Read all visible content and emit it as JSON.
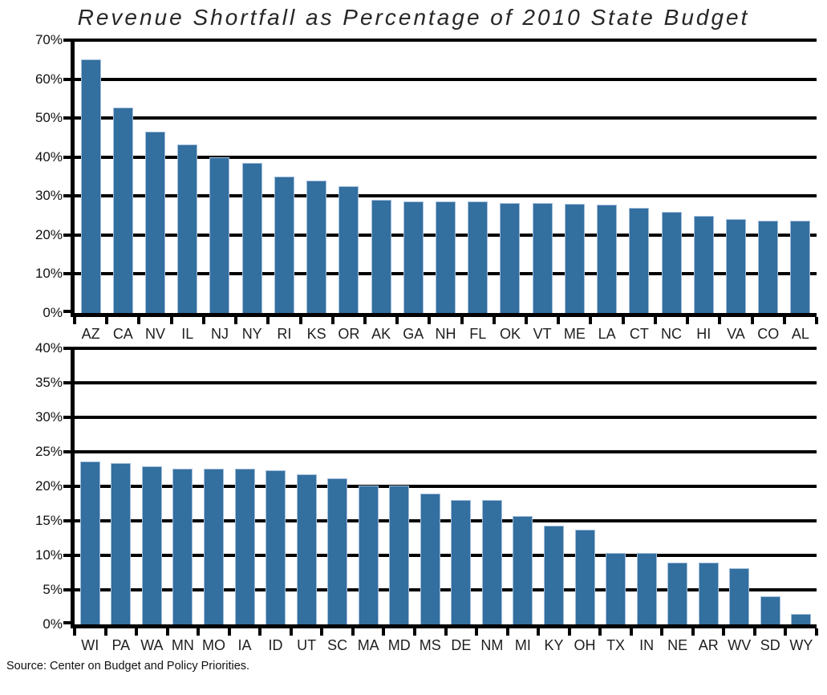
{
  "title": "Revenue Shortfall as Percentage of 2010 State Budget",
  "source_note": "Source: Center on Budget and Policy Priorities.",
  "colors": {
    "bar_fill": "#336f9f",
    "bar_edge": "#a3bedb",
    "grid_line": "#000000",
    "axis_line": "#000000",
    "title_text": "#262626",
    "label_text": "#1e1e1e"
  },
  "chart_data": [
    {
      "type": "bar",
      "panel": "top",
      "title": "Revenue Shortfall as Percentage of 2010 State Budget",
      "xlabel": "",
      "ylabel": "",
      "ylim": [
        0,
        70
      ],
      "ytick_step": 10,
      "yticklabels": [
        "70%",
        "60%",
        "50%",
        "40%",
        "30%",
        "20%",
        "10%",
        "0%"
      ],
      "grid": true,
      "legend_position": "none",
      "categories": [
        "AZ",
        "CA",
        "NV",
        "IL",
        "NJ",
        "NY",
        "RI",
        "KS",
        "OR",
        "AK",
        "GA",
        "NH",
        "FL",
        "OK",
        "VT",
        "ME",
        "LA",
        "CT",
        "NC",
        "HI",
        "VA",
        "CO",
        "AL"
      ],
      "values": [
        65.0,
        52.7,
        46.5,
        43.3,
        40.0,
        38.5,
        35.0,
        34.0,
        32.5,
        29.0,
        28.7,
        28.6,
        28.6,
        28.2,
        28.2,
        27.9,
        27.8,
        27.0,
        26.0,
        25.0,
        24.0,
        23.6,
        23.6
      ]
    },
    {
      "type": "bar",
      "panel": "bottom",
      "title": "Revenue Shortfall as Percentage of 2010 State Budget",
      "xlabel": "",
      "ylabel": "",
      "ylim": [
        0,
        40
      ],
      "ytick_step": 5,
      "yticklabels": [
        "40%",
        "35%",
        "30%",
        "25%",
        "20%",
        "15%",
        "10%",
        "5%",
        "0%"
      ],
      "grid": true,
      "legend_position": "none",
      "categories": [
        "WI",
        "PA",
        "WA",
        "MN",
        "MO",
        "IA",
        "ID",
        "UT",
        "SC",
        "MA",
        "MD",
        "MS",
        "DE",
        "NM",
        "MI",
        "KY",
        "OH",
        "TX",
        "IN",
        "NE",
        "AR",
        "WV",
        "SD",
        "WY"
      ],
      "values": [
        23.6,
        23.4,
        22.9,
        22.5,
        22.5,
        22.5,
        22.3,
        21.8,
        21.2,
        20.1,
        20.1,
        19.0,
        18.0,
        18.0,
        15.7,
        14.3,
        13.7,
        10.4,
        10.4,
        9.0,
        8.9,
        8.1,
        4.1,
        1.5
      ]
    }
  ]
}
